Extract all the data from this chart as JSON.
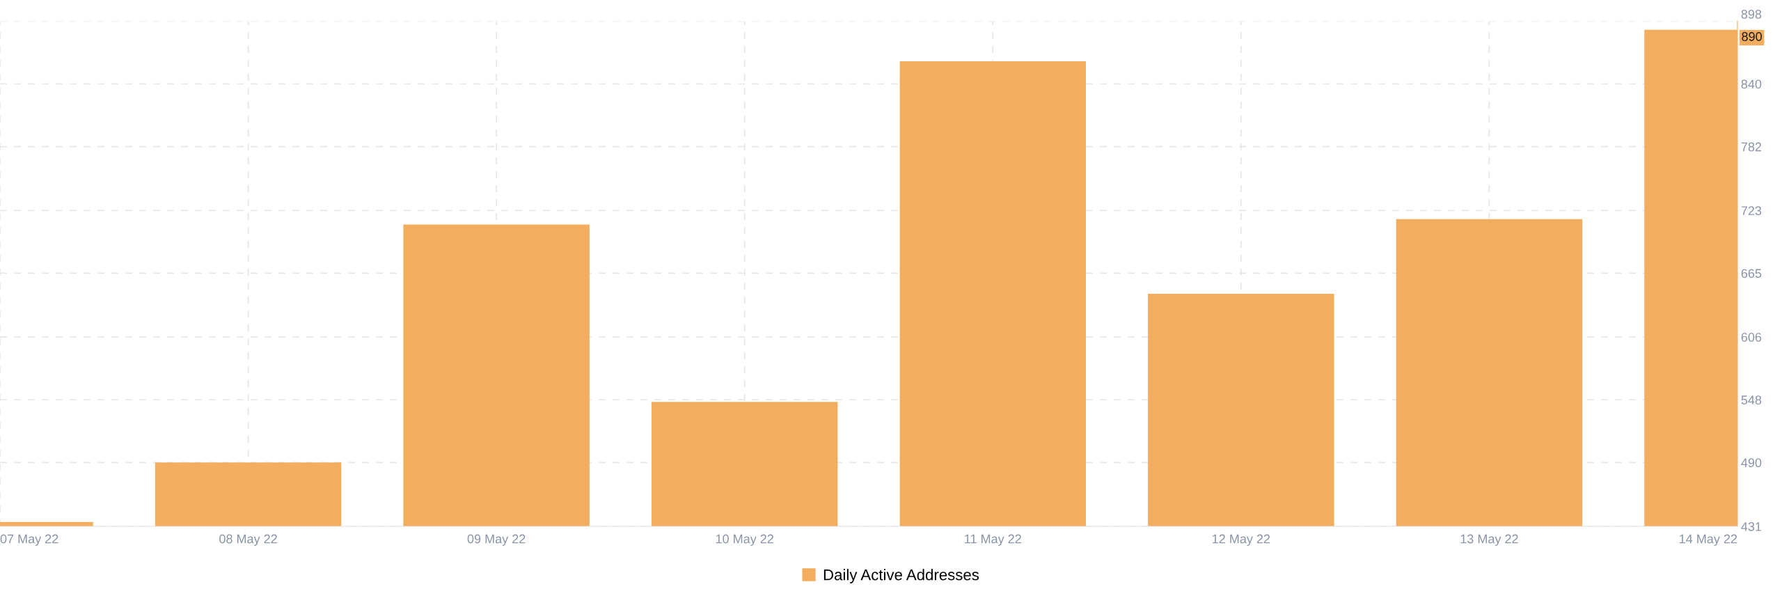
{
  "chart_data": {
    "type": "bar",
    "categories": [
      "07 May 22",
      "08 May 22",
      "09 May 22",
      "10 May 22",
      "11 May 22",
      "12 May 22",
      "13 May 22",
      "14 May 22"
    ],
    "series": [
      {
        "name": "Daily Active Addresses",
        "color": "#f2ae5e",
        "values": [
          435,
          490,
          710,
          546,
          861,
          646,
          715,
          890
        ]
      }
    ],
    "ylim": [
      431,
      898
    ],
    "yticks": [
      431,
      490,
      548,
      606,
      665,
      723,
      782,
      840,
      898
    ],
    "annotations": [
      {
        "text": "890",
        "y": 890
      }
    ],
    "grid": true,
    "legend": "bottom"
  }
}
